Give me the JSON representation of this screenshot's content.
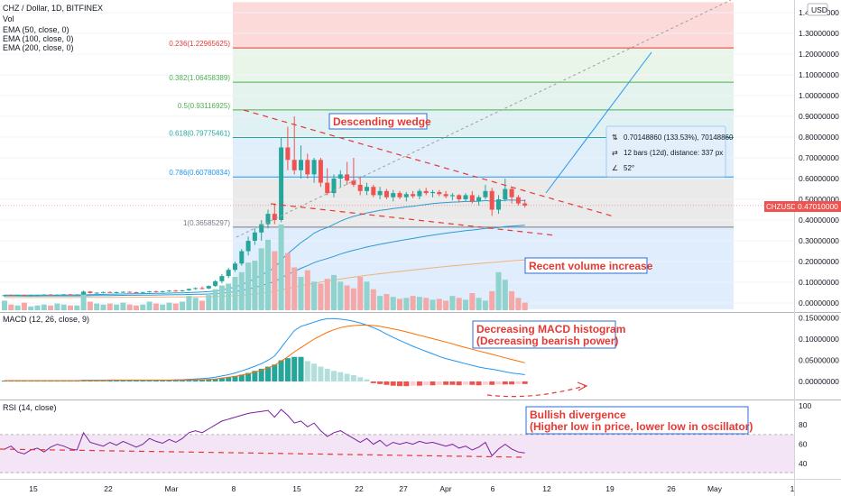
{
  "legend": {
    "title": "CHZ / Dollar, 1D, BITFINEX",
    "vol": "Vol",
    "ema50": "EMA (50, close, 0)",
    "ema100": "EMA (100, close, 0)",
    "ema200": "EMA (200, close, 0)"
  },
  "axis": {
    "currency": "USD",
    "price_ticks": [
      "1.40000000",
      "1.30000000",
      "1.20000000",
      "1.10000000",
      "1.00000000",
      "0.90000000",
      "0.80000000",
      "0.70000000",
      "0.60000000",
      "0.50000000",
      "0.40000000",
      "0.30000000",
      "0.20000000",
      "0.10000000",
      "0.00000000"
    ],
    "price_values": [
      1.4,
      1.3,
      1.2,
      1.1,
      1.0,
      0.9,
      0.8,
      0.7,
      0.6,
      0.5,
      0.4,
      0.3,
      0.2,
      0.1,
      0.0
    ],
    "last_price_symbol": "CHZUSD",
    "last_price": "0.47010000",
    "x_ticks": [
      "15",
      "22",
      "Mar",
      "8",
      "15",
      "22",
      "27",
      "Apr",
      "6",
      "12",
      "19",
      "26",
      "May",
      "1"
    ],
    "macd_ticks": [
      "0.15000000",
      "0.10000000",
      "0.05000000",
      "0.00000000"
    ],
    "macd_values": [
      0.15,
      0.1,
      0.05,
      0.0
    ],
    "rsi_ticks": [
      "100",
      "80",
      "60",
      "40"
    ],
    "rsi_values": [
      100,
      80,
      60,
      40
    ]
  },
  "fib_levels": [
    {
      "label": "0.236(1.22965625)",
      "price": 1.22965625,
      "color": "#e53935"
    },
    {
      "label": "0.382(1.06458389)",
      "price": 1.06458389,
      "color": "#4caf50"
    },
    {
      "label": "0.5(0.93116925)",
      "price": 0.93116925,
      "color": "#4caf50"
    },
    {
      "label": "0.618(0.79775461)",
      "price": 0.79775461,
      "color": "#26a69a"
    },
    {
      "label": "0.786(0.60780834)",
      "price": 0.60780834,
      "color": "#2196f3"
    },
    {
      "label": "1(0.36585297)",
      "price": 0.36585297,
      "color": "#787b86"
    }
  ],
  "measure": {
    "line1": "0.70148860 (133.53%), 70148860",
    "line2": "12 bars (12d), distance: 337 px",
    "line3": "52°"
  },
  "annotations": {
    "wedge": "Descending wedge",
    "volume": "Recent volume increase",
    "macd_line1": "Decreasing MACD histogram",
    "macd_line2": "(Decreasing bearish power)",
    "rsi_line1": "Bullish divergence",
    "rsi_line2": "(Higher low in price, lower low in oscillator)"
  },
  "panes": {
    "macd_title": "MACD (12, 26, close, 9)",
    "rsi_title": "RSI (14, close)"
  },
  "colors": {
    "up": "#26a69a",
    "down": "#ef5350",
    "annotation": "#e53935",
    "ema50": "#2a9bd6",
    "ema100": "#2a9bd6",
    "ema200": "#f0b27a",
    "macd": "#2196f3",
    "signal": "#ff6d00",
    "rsi": "#7b1fa2"
  },
  "chart_data": {
    "type": "candlestick",
    "symbol": "CHZ / Dollar",
    "interval": "1D",
    "exchange": "BITFINEX",
    "candles": [
      [
        0.035,
        0.04,
        0.03,
        0.038
      ],
      [
        0.038,
        0.042,
        0.033,
        0.036
      ],
      [
        0.036,
        0.04,
        0.032,
        0.039
      ],
      [
        0.039,
        0.041,
        0.034,
        0.035
      ],
      [
        0.035,
        0.038,
        0.031,
        0.037
      ],
      [
        0.037,
        0.04,
        0.034,
        0.039
      ],
      [
        0.039,
        0.042,
        0.036,
        0.041
      ],
      [
        0.041,
        0.043,
        0.036,
        0.038
      ],
      [
        0.038,
        0.041,
        0.035,
        0.04
      ],
      [
        0.04,
        0.043,
        0.037,
        0.042
      ],
      [
        0.042,
        0.044,
        0.038,
        0.04
      ],
      [
        0.04,
        0.043,
        0.037,
        0.041
      ],
      [
        0.041,
        0.06,
        0.04,
        0.055
      ],
      [
        0.055,
        0.058,
        0.045,
        0.048
      ],
      [
        0.048,
        0.052,
        0.044,
        0.05
      ],
      [
        0.05,
        0.055,
        0.046,
        0.053
      ],
      [
        0.053,
        0.056,
        0.048,
        0.051
      ],
      [
        0.051,
        0.055,
        0.047,
        0.052
      ],
      [
        0.052,
        0.056,
        0.049,
        0.054
      ],
      [
        0.054,
        0.057,
        0.05,
        0.052
      ],
      [
        0.052,
        0.055,
        0.048,
        0.05
      ],
      [
        0.05,
        0.054,
        0.047,
        0.053
      ],
      [
        0.053,
        0.058,
        0.05,
        0.056
      ],
      [
        0.056,
        0.06,
        0.052,
        0.055
      ],
      [
        0.055,
        0.059,
        0.051,
        0.057
      ],
      [
        0.057,
        0.062,
        0.053,
        0.06
      ],
      [
        0.06,
        0.064,
        0.055,
        0.058
      ],
      [
        0.058,
        0.063,
        0.054,
        0.061
      ],
      [
        0.061,
        0.07,
        0.058,
        0.068
      ],
      [
        0.068,
        0.075,
        0.063,
        0.072
      ],
      [
        0.072,
        0.08,
        0.066,
        0.07
      ],
      [
        0.07,
        0.085,
        0.067,
        0.082
      ],
      [
        0.082,
        0.11,
        0.078,
        0.105
      ],
      [
        0.105,
        0.14,
        0.095,
        0.13
      ],
      [
        0.13,
        0.17,
        0.12,
        0.16
      ],
      [
        0.16,
        0.2,
        0.15,
        0.19
      ],
      [
        0.19,
        0.26,
        0.18,
        0.25
      ],
      [
        0.25,
        0.32,
        0.23,
        0.3
      ],
      [
        0.3,
        0.36,
        0.28,
        0.34
      ],
      [
        0.34,
        0.4,
        0.3,
        0.38
      ],
      [
        0.38,
        0.45,
        0.36,
        0.43
      ],
      [
        0.43,
        0.48,
        0.38,
        0.4
      ],
      [
        0.4,
        0.8,
        0.39,
        0.75
      ],
      [
        0.75,
        0.85,
        0.64,
        0.69
      ],
      [
        0.69,
        0.9,
        0.62,
        0.64
      ],
      [
        0.64,
        0.76,
        0.6,
        0.69
      ],
      [
        0.69,
        0.72,
        0.6,
        0.62
      ],
      [
        0.62,
        0.7,
        0.58,
        0.69
      ],
      [
        0.69,
        0.7,
        0.56,
        0.58
      ],
      [
        0.58,
        0.65,
        0.52,
        0.53
      ],
      [
        0.53,
        0.62,
        0.51,
        0.6
      ],
      [
        0.6,
        0.64,
        0.56,
        0.62
      ],
      [
        0.62,
        0.68,
        0.57,
        0.59
      ],
      [
        0.59,
        0.7,
        0.56,
        0.57
      ],
      [
        0.57,
        0.61,
        0.52,
        0.54
      ],
      [
        0.54,
        0.58,
        0.52,
        0.56
      ],
      [
        0.56,
        0.57,
        0.51,
        0.52
      ],
      [
        0.52,
        0.56,
        0.5,
        0.54
      ],
      [
        0.54,
        0.55,
        0.5,
        0.51
      ],
      [
        0.51,
        0.545,
        0.49,
        0.53
      ],
      [
        0.53,
        0.54,
        0.5,
        0.51
      ],
      [
        0.51,
        0.535,
        0.49,
        0.525
      ],
      [
        0.525,
        0.54,
        0.505,
        0.515
      ],
      [
        0.515,
        0.55,
        0.5,
        0.54
      ],
      [
        0.54,
        0.555,
        0.52,
        0.53
      ],
      [
        0.53,
        0.545,
        0.51,
        0.535
      ],
      [
        0.535,
        0.545,
        0.515,
        0.525
      ],
      [
        0.525,
        0.54,
        0.505,
        0.515
      ],
      [
        0.515,
        0.53,
        0.495,
        0.52
      ],
      [
        0.52,
        0.525,
        0.485,
        0.5
      ],
      [
        0.5,
        0.53,
        0.49,
        0.52
      ],
      [
        0.52,
        0.54,
        0.48,
        0.49
      ],
      [
        0.49,
        0.52,
        0.47,
        0.51
      ],
      [
        0.51,
        0.57,
        0.5,
        0.54
      ],
      [
        0.54,
        0.555,
        0.42,
        0.45
      ],
      [
        0.45,
        0.52,
        0.43,
        0.5
      ],
      [
        0.5,
        0.6,
        0.49,
        0.55
      ],
      [
        0.55,
        0.56,
        0.48,
        0.51
      ],
      [
        0.51,
        0.52,
        0.47,
        0.48
      ],
      [
        0.48,
        0.5,
        0.46,
        0.47
      ]
    ],
    "volume": [
      1,
      0.6,
      0.5,
      0.8,
      0.4,
      0.5,
      0.6,
      0.5,
      0.7,
      0.6,
      0.5,
      0.5,
      1.8,
      0.9,
      0.7,
      0.6,
      0.7,
      0.6,
      0.8,
      0.6,
      0.5,
      0.6,
      0.9,
      0.7,
      0.6,
      0.8,
      0.7,
      0.9,
      1.5,
      1.3,
      1.0,
      1.6,
      2.2,
      2.6,
      2.8,
      3.5,
      4.0,
      5.0,
      5.2,
      6.5,
      7.4,
      6.2,
      9.0,
      6.0,
      4.5,
      3.5,
      4.2,
      3.0,
      2.8,
      3.3,
      3.7,
      3.0,
      2.6,
      2.3,
      3.5,
      3.0,
      2.2,
      1.5,
      1.7,
      1.4,
      1.2,
      1.3,
      1.5,
      1.4,
      1.3,
      1.1,
      1.2,
      1.0,
      1.5,
      1.3,
      1.1,
      1.8,
      1.3,
      1.0,
      2.0,
      4.0,
      3.2,
      2.0,
      1.3,
      0.8
    ],
    "macd_hist": [
      0.002,
      0.002,
      0.002,
      0.002,
      0.002,
      0.002,
      0.002,
      0.002,
      0.002,
      0.002,
      0.002,
      0.002,
      0.003,
      0.003,
      0.003,
      0.003,
      0.003,
      0.003,
      0.003,
      0.003,
      0.003,
      0.003,
      0.003,
      0.003,
      0.003,
      0.003,
      0.003,
      0.003,
      0.004,
      0.004,
      0.004,
      0.005,
      0.006,
      0.008,
      0.01,
      0.013,
      0.016,
      0.02,
      0.025,
      0.03,
      0.035,
      0.04,
      0.05,
      0.055,
      0.058,
      0.058,
      0.048,
      0.042,
      0.035,
      0.03,
      0.025,
      0.022,
      0.018,
      0.015,
      0.01,
      0.005,
      -0.004,
      -0.006,
      -0.008,
      -0.01,
      -0.011,
      -0.011,
      -0.01,
      -0.01,
      -0.009,
      -0.009,
      -0.008,
      -0.008,
      -0.008,
      -0.009,
      -0.008,
      -0.008,
      -0.009,
      -0.008,
      -0.008,
      -0.007,
      -0.007,
      -0.007,
      -0.006,
      -0.006
    ],
    "macd_line": [
      0.002,
      0.002,
      0.002,
      0.002,
      0.002,
      0.002,
      0.002,
      0.002,
      0.002,
      0.002,
      0.002,
      0.002,
      0.003,
      0.003,
      0.003,
      0.003,
      0.003,
      0.003,
      0.003,
      0.003,
      0.003,
      0.003,
      0.003,
      0.003,
      0.003,
      0.003,
      0.004,
      0.004,
      0.005,
      0.006,
      0.007,
      0.008,
      0.01,
      0.013,
      0.016,
      0.02,
      0.025,
      0.03,
      0.036,
      0.042,
      0.05,
      0.06,
      0.08,
      0.1,
      0.12,
      0.13,
      0.135,
      0.14,
      0.145,
      0.148,
      0.148,
      0.147,
      0.145,
      0.142,
      0.138,
      0.133,
      0.127,
      0.12,
      0.112,
      0.104,
      0.097,
      0.09,
      0.083,
      0.077,
      0.071,
      0.065,
      0.059,
      0.054,
      0.05,
      0.046,
      0.042,
      0.038,
      0.034,
      0.031,
      0.029,
      0.026,
      0.023,
      0.02,
      0.018,
      0.016
    ],
    "signal_line": [
      0.002,
      0.002,
      0.002,
      0.002,
      0.002,
      0.002,
      0.002,
      0.002,
      0.002,
      0.002,
      0.002,
      0.002,
      0.002,
      0.002,
      0.002,
      0.002,
      0.003,
      0.003,
      0.003,
      0.003,
      0.003,
      0.003,
      0.003,
      0.003,
      0.003,
      0.003,
      0.003,
      0.003,
      0.003,
      0.004,
      0.004,
      0.005,
      0.006,
      0.008,
      0.01,
      0.012,
      0.015,
      0.018,
      0.022,
      0.027,
      0.032,
      0.038,
      0.048,
      0.058,
      0.07,
      0.08,
      0.09,
      0.1,
      0.108,
      0.116,
      0.122,
      0.127,
      0.13,
      0.132,
      0.133,
      0.133,
      0.132,
      0.13,
      0.127,
      0.124,
      0.121,
      0.117,
      0.113,
      0.109,
      0.105,
      0.101,
      0.097,
      0.093,
      0.089,
      0.084,
      0.08,
      0.076,
      0.072,
      0.068,
      0.064,
      0.06,
      0.056,
      0.052,
      0.048,
      0.044
    ],
    "rsi": [
      55,
      58,
      52,
      50,
      54,
      56,
      52,
      57,
      60,
      58,
      55,
      54,
      72,
      62,
      60,
      58,
      62,
      59,
      63,
      60,
      57,
      60,
      66,
      63,
      61,
      65,
      62,
      66,
      72,
      74,
      72,
      76,
      80,
      84,
      86,
      88,
      90,
      92,
      93,
      94,
      95,
      88,
      96,
      90,
      82,
      84,
      78,
      82,
      74,
      68,
      72,
      74,
      70,
      66,
      62,
      66,
      60,
      64,
      58,
      62,
      60,
      62,
      60,
      63,
      61,
      62,
      60,
      58,
      60,
      56,
      58,
      54,
      57,
      62,
      48,
      55,
      60,
      55,
      52,
      51
    ]
  }
}
